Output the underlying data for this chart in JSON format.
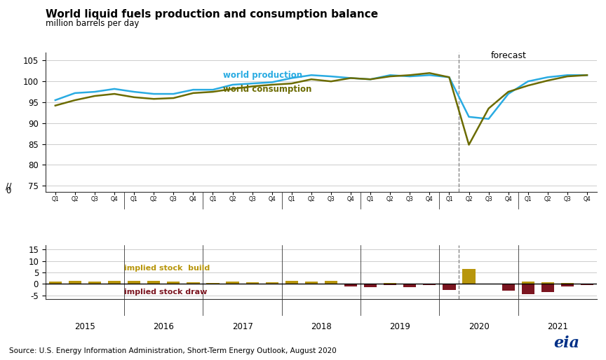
{
  "title": "World liquid fuels production and consumption balance",
  "subtitle": "million barrels per day",
  "source": "Source: U.S. Energy Information Administration, Short-Term Energy Outlook, August 2020",
  "forecast_label": "forecast",
  "quarters": [
    "Q1",
    "Q2",
    "Q3",
    "Q4",
    "Q1",
    "Q2",
    "Q3",
    "Q4",
    "Q1",
    "Q2",
    "Q3",
    "Q4",
    "Q1",
    "Q2",
    "Q3",
    "Q4",
    "Q1",
    "Q2",
    "Q3",
    "Q4",
    "Q1",
    "Q2",
    "Q3",
    "Q4",
    "Q1",
    "Q2",
    "Q3",
    "Q4"
  ],
  "years": [
    2015,
    2015,
    2015,
    2015,
    2016,
    2016,
    2016,
    2016,
    2017,
    2017,
    2017,
    2017,
    2018,
    2018,
    2018,
    2018,
    2019,
    2019,
    2019,
    2019,
    2020,
    2020,
    2020,
    2020,
    2021,
    2021,
    2021,
    2021
  ],
  "production": [
    95.5,
    97.2,
    97.5,
    98.2,
    97.5,
    97.0,
    97.0,
    98.0,
    98.0,
    99.2,
    99.5,
    99.8,
    100.8,
    101.5,
    101.2,
    100.8,
    100.5,
    101.5,
    101.2,
    101.5,
    101.0,
    91.5,
    91.0,
    97.0,
    100.0,
    101.0,
    101.5,
    101.5
  ],
  "consumption": [
    94.2,
    95.5,
    96.5,
    97.0,
    96.2,
    95.8,
    96.0,
    97.2,
    97.5,
    98.2,
    98.8,
    99.2,
    99.5,
    100.5,
    100.0,
    100.8,
    100.5,
    101.2,
    101.5,
    102.0,
    101.0,
    84.8,
    93.5,
    97.5,
    99.0,
    100.2,
    101.2,
    101.5
  ],
  "stock_build": [
    1.0,
    1.5,
    1.0,
    1.2,
    1.2,
    1.2,
    1.0,
    0.8,
    0.5,
    1.0,
    0.7,
    0.6,
    1.3,
    1.0,
    1.2,
    0.0,
    0.0,
    0.3,
    0.0,
    0.0,
    0.0,
    6.5,
    0.0,
    0.0,
    1.0,
    0.8,
    0.3,
    0.0
  ],
  "stock_draw": [
    0.0,
    0.0,
    0.0,
    0.0,
    0.0,
    0.0,
    0.0,
    0.0,
    0.0,
    0.0,
    0.0,
    0.0,
    0.0,
    0.0,
    0.0,
    -1.0,
    -1.5,
    -0.5,
    -1.5,
    -0.5,
    -2.5,
    0.0,
    0.0,
    -3.0,
    -4.5,
    -3.5,
    -1.0,
    -0.5
  ],
  "production_color": "#29ABE2",
  "consumption_color": "#6B6B00",
  "build_color": "#B8960C",
  "draw_color": "#7B1520",
  "dashed_line_color": "#888888",
  "background_color": "#FFFFFF",
  "grid_color": "#CCCCCC",
  "forecast_divider_index": 21
}
